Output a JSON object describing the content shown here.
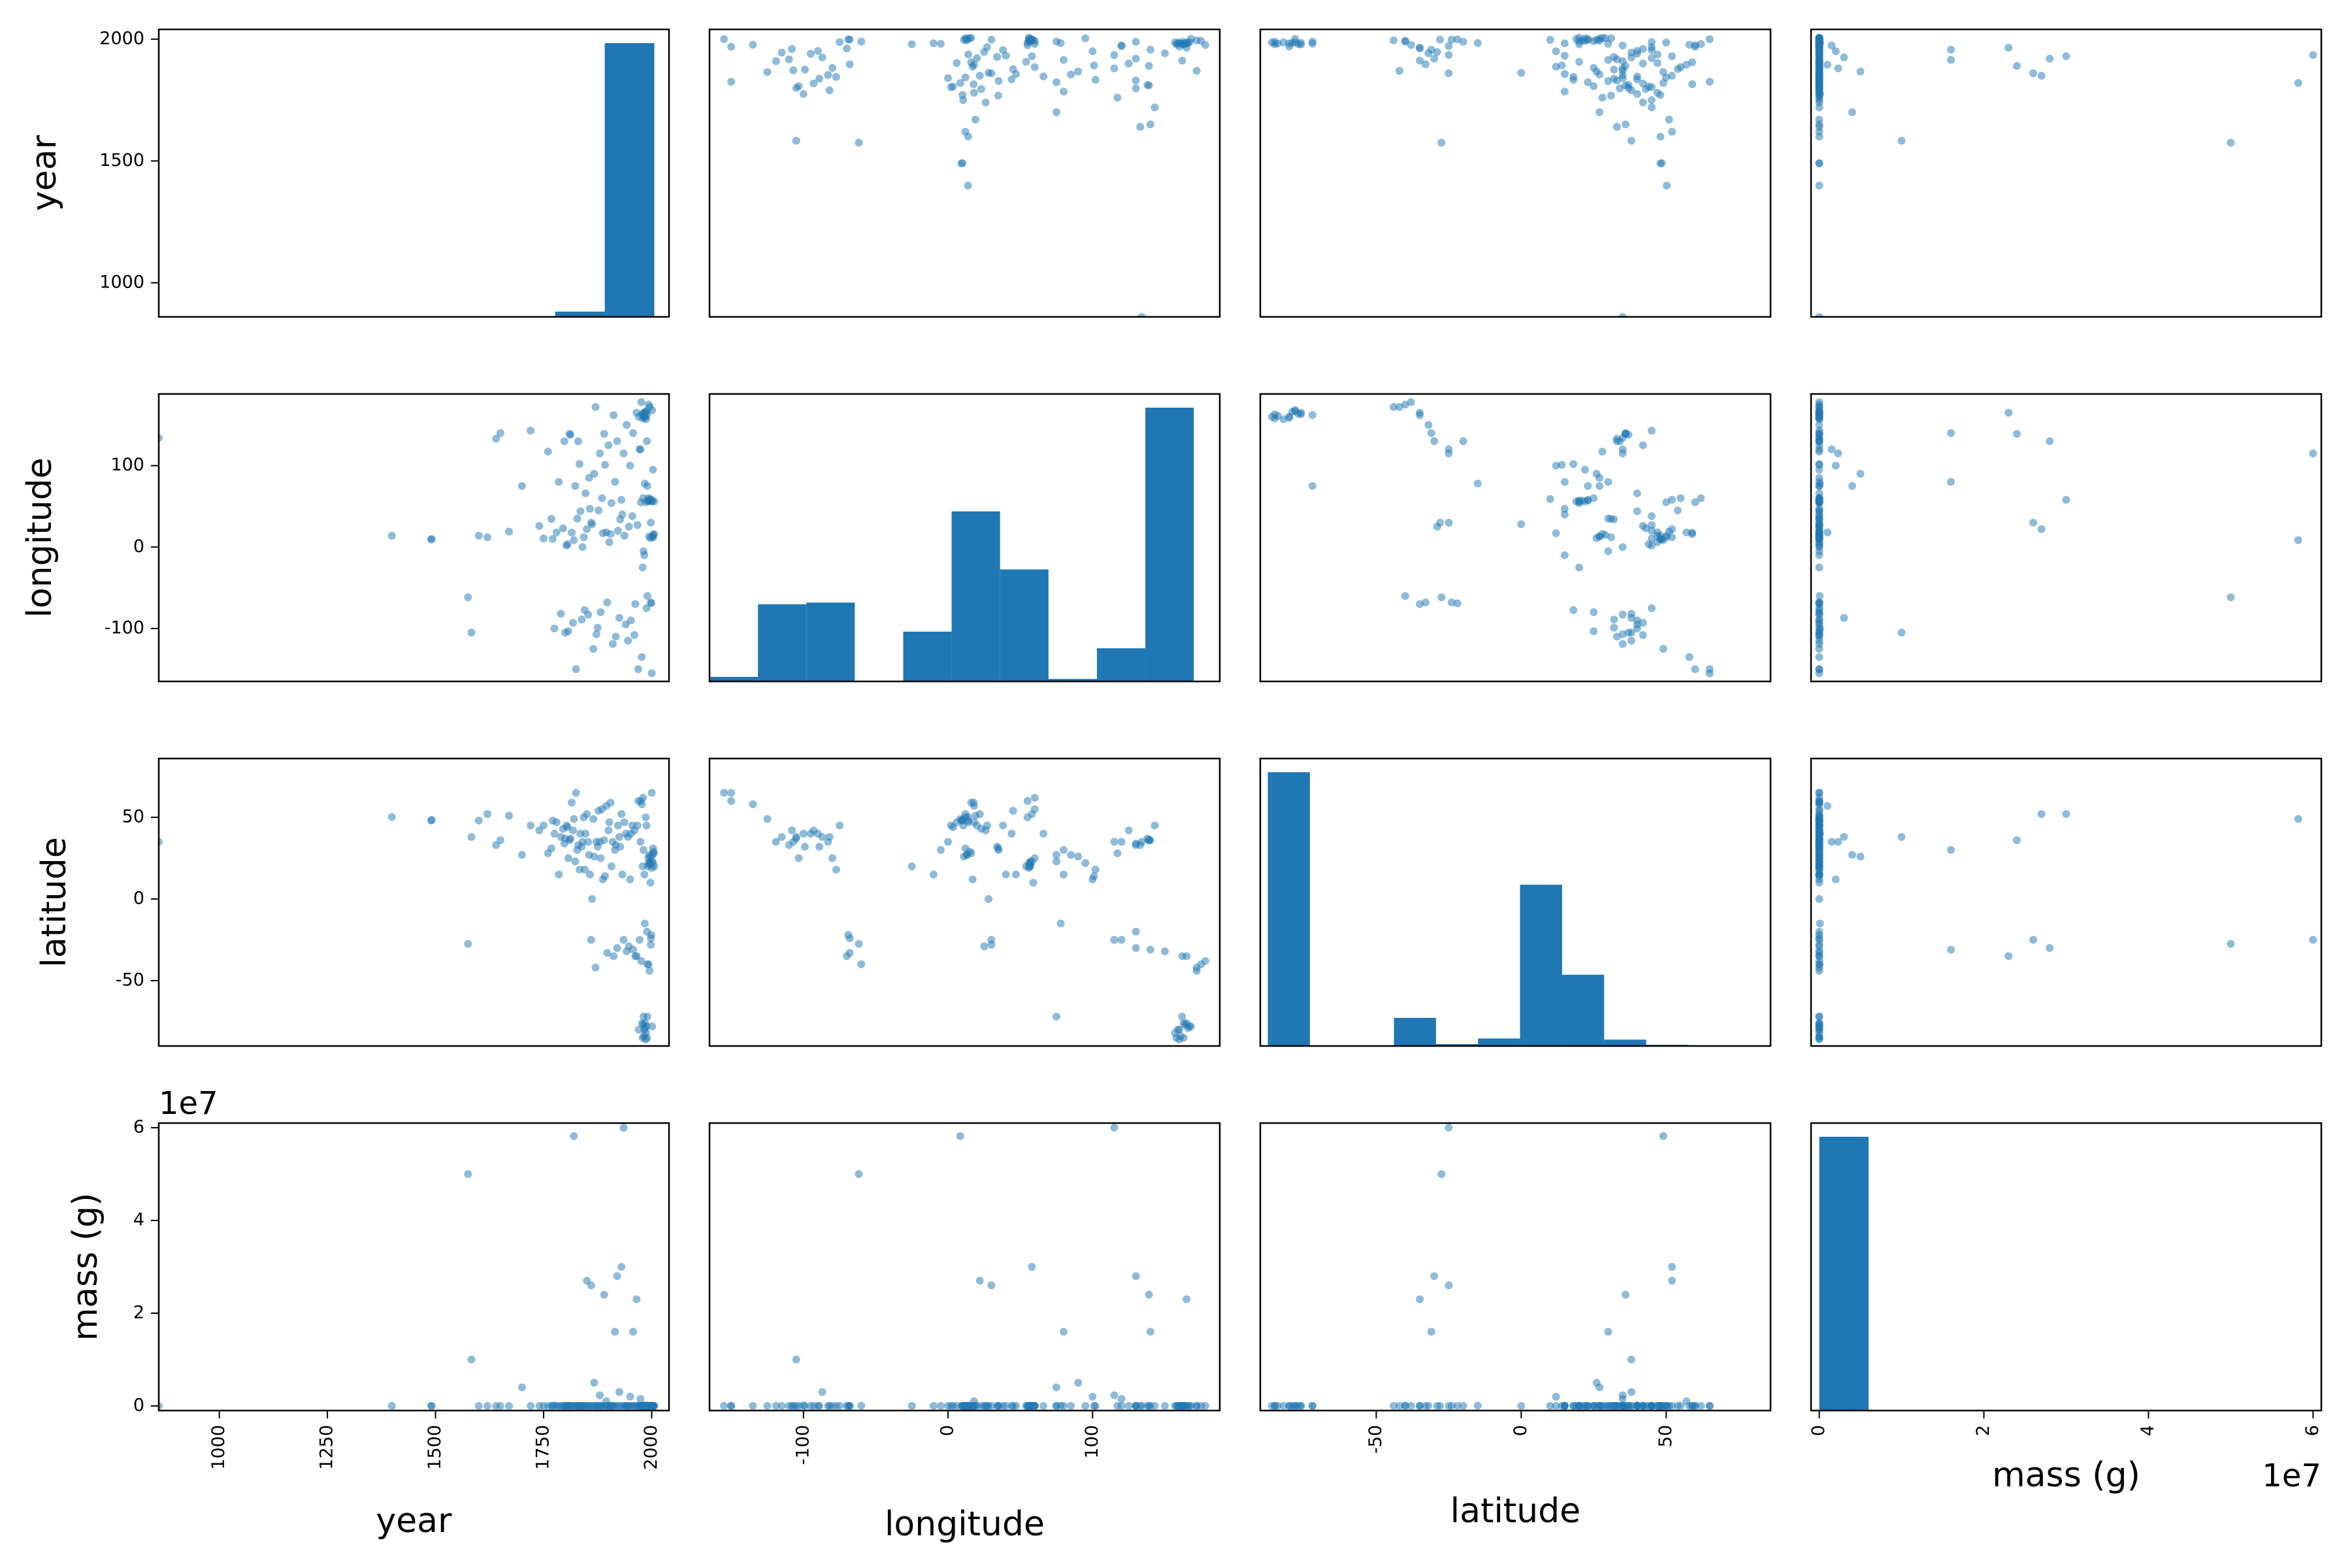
{
  "figure": {
    "type": "scatter_matrix",
    "variables": [
      "year",
      "longitude",
      "latitude",
      "mass (g)"
    ]
  },
  "colors": {
    "marker": "#1f77b4",
    "axis": "#000000",
    "background": "#ffffff"
  },
  "chart_data": {
    "type": "scatter",
    "layout": "scatter matrix (pairs plot); diagonal panels are histograms with 10 bins",
    "variables": [
      {
        "name": "year",
        "label": "year",
        "range": [
          860,
          2040
        ],
        "ticks": [
          1000,
          1250,
          1500,
          1750,
          2000
        ],
        "row_ticks": [
          1000,
          1500,
          2000
        ]
      },
      {
        "name": "longitude",
        "label": "longitude",
        "range": [
          -165,
          188
        ],
        "ticks": [
          -100,
          0,
          100
        ],
        "row_ticks": [
          -100,
          0,
          100
        ]
      },
      {
        "name": "latitude",
        "label": "latitude",
        "range": [
          -90,
          86
        ],
        "ticks": [
          -50,
          0,
          50
        ],
        "row_ticks": [
          -50,
          0,
          50
        ]
      },
      {
        "name": "mass (g)",
        "label": "mass (g)",
        "range": [
          -1000000,
          61000000
        ],
        "ticks": [
          0,
          20000000,
          40000000,
          60000000
        ],
        "tick_labels": [
          "0",
          "2",
          "4",
          "6"
        ],
        "row_ticks": [
          0,
          20000000,
          40000000,
          60000000
        ],
        "row_tick_labels": [
          "0",
          "2",
          "4",
          "6"
        ],
        "offset_label": "1e7"
      }
    ],
    "histograms": {
      "year": {
        "bin_edges": [
          860,
          974.6,
          1089.2,
          1203.8,
          1318.4,
          1433,
          1547.6,
          1662.2,
          1776.8,
          1891.4,
          2006
        ],
        "counts": [
          1,
          0,
          0,
          0,
          0,
          1,
          3,
          10,
          150,
          7770
        ]
      },
      "longitude": {
        "bin_edges": [
          -165,
          -131.5,
          -98,
          -64.5,
          -31,
          2.5,
          36,
          69.5,
          103,
          136.5,
          170
        ],
        "counts": [
          55,
          930,
          950,
          5,
          600,
          2050,
          1350,
          30,
          400,
          3300
        ]
      },
      "latitude": {
        "bin_edges": [
          -87.4,
          -72.9,
          -58.4,
          -43.9,
          -29.4,
          -14.9,
          -0.4,
          14.1,
          28.6,
          43.1,
          57.6
        ],
        "counts": [
          7300,
          0,
          5,
          750,
          50,
          200,
          4300,
          1900,
          170,
          30
        ]
      },
      "mass (g)": {
        "bin_edges": [
          0,
          6000000,
          12000000,
          18000000,
          24000000,
          30000000,
          36000000,
          42000000,
          48000000,
          54000000,
          60000000
        ],
        "counts": [
          7300,
          2,
          1,
          3,
          2,
          3,
          0,
          0,
          1,
          2
        ]
      }
    },
    "points": {
      "year": [
        860,
        1399,
        1490,
        1491,
        1575,
        1583,
        1600,
        1620,
        1640,
        1650,
        1670,
        1700,
        1720,
        1740,
        1750,
        1760,
        1768,
        1771,
        1775,
        1780,
        1785,
        1790,
        1795,
        1798,
        1800,
        1803,
        1805,
        1807,
        1810,
        1812,
        1815,
        1818,
        1820,
        1823,
        1825,
        1828,
        1830,
        1833,
        1835,
        1838,
        1840,
        1843,
        1845,
        1847,
        1850,
        1853,
        1855,
        1857,
        1860,
        1862,
        1865,
        1867,
        1870,
        1872,
        1875,
        1877,
        1880,
        1882,
        1885,
        1887,
        1890,
        1892,
        1895,
        1897,
        1900,
        1902,
        1905,
        1907,
        1910,
        1912,
        1915,
        1917,
        1920,
        1922,
        1925,
        1927,
        1930,
        1932,
        1935,
        1937,
        1940,
        1942,
        1945,
        1947,
        1950,
        1952,
        1955,
        1957,
        1960,
        1962,
        1965,
        1967,
        1970,
        1972,
        1975,
        1977,
        1978,
        1979,
        1980,
        1981,
        1982,
        1983,
        1984,
        1985,
        1986,
        1987,
        1988,
        1989,
        1990,
        1991,
        1992,
        1993,
        1994,
        1995,
        1996,
        1997,
        1998,
        1999,
        2000,
        2001,
        2002,
        2003,
        2004,
        2005,
        2006,
        1988,
        1990,
        1979,
        1984,
        1997,
        2000,
        1976,
        1969,
        1993,
        1981,
        1986,
        1998,
        2001,
        1974,
        1995,
        2003,
        1980,
        1983,
        1989,
        1991
      ],
      "longitude": [
        134.0,
        13.8,
        9.3,
        10.0,
        -61.7,
        -105.0,
        14.0,
        12.0,
        133.0,
        140.0,
        19.0,
        75.0,
        143.0,
        26.0,
        10.5,
        117.2,
        34.7,
        10.0,
        -100.0,
        18.0,
        80.0,
        -82.0,
        23.0,
        130.0,
        -105.0,
        2.0,
        3.5,
        -103.3,
        139.0,
        138.0,
        17.7,
        -93.0,
        8.5,
        75.0,
        -150.0,
        35.0,
        129.9,
        102.0,
        44.0,
        -89.0,
        0.0,
        12.0,
        -77.4,
        66.0,
        22.0,
        -83.0,
        85.0,
        47.0,
        30.0,
        28.0,
        -125.0,
        90.0,
        172.0,
        -107.0,
        -99.0,
        45.0,
        115.0,
        -80.0,
        60.0,
        17.0,
        139.0,
        101.0,
        18.0,
        -68.0,
        125.0,
        6.0,
        16.0,
        54.0,
        -119.0,
        162.0,
        80.0,
        -110.0,
        130.0,
        20.0,
        -87.0,
        34.0,
        58.0,
        40.0,
        115.0,
        14.0,
        -95.0,
        150.0,
        -115.0,
        25.0,
        100.0,
        -90.0,
        38.0,
        140.0,
        -108.0,
        -70.0,
        165.0,
        27.0,
        160.0,
        120.0,
        55.0,
        -135.0,
        163.0,
        158.0,
        164.0,
        162.0,
        161.0,
        159.0,
        166.0,
        165.0,
        160.0,
        157.0,
        167.0,
        163.0,
        75.0,
        57.0,
        60.0,
        56.0,
        13.0,
        57.0,
        58.0,
        11.0,
        -68.0,
        -69.0,
        56.0,
        57.0,
        13.0,
        12.0,
        15.0,
        16.0,
        56.0,
        -75.0,
        -60.0,
        -25.0,
        78.0,
        59.0,
        -155.0,
        178.0,
        -150.0,
        175.0,
        -5.0,
        55.0,
        30.0,
        168.0,
        120.0,
        172.0,
        95.0,
        60.0,
        -10.0,
        130.0
      ],
      "latitude": [
        35.0,
        50.2,
        48.0,
        48.5,
        -27.5,
        38.0,
        48.0,
        52.0,
        33.0,
        36.0,
        51.0,
        27.0,
        45.0,
        42.0,
        45.0,
        28.0,
        31.0,
        48.0,
        40.0,
        47.0,
        15.0,
        38.0,
        43.0,
        34.0,
        37.0,
        45.0,
        44.0,
        25.0,
        36.0,
        37.0,
        59.0,
        42.0,
        49.0,
        23.0,
        65.0,
        30.0,
        33.0,
        18.0,
        40.0,
        32.0,
        35.0,
        50.0,
        18.0,
        40.0,
        52.0,
        35.0,
        27.0,
        15.0,
        -25.0,
        0.0,
        49.0,
        26.0,
        -42.0,
        35.0,
        32.0,
        54.0,
        35.0,
        25.0,
        55.0,
        12.0,
        36.0,
        14.0,
        57.0,
        -33.0,
        42.0,
        47.0,
        59.0,
        20.0,
        35.0,
        -35.0,
        30.0,
        33.0,
        -30.0,
        45.0,
        38.0,
        32.0,
        52.0,
        15.0,
        -25.0,
        47.0,
        40.0,
        -32.0,
        38.0,
        -29.0,
        12.0,
        40.0,
        45.0,
        -31.0,
        42.0,
        -35.0,
        -35.0,
        45.0,
        -80.0,
        -25.0,
        60.0,
        58.0,
        -76.0,
        -85.0,
        -77.0,
        -72.0,
        -84.0,
        -80.0,
        -79.0,
        -76.0,
        -86.0,
        -82.0,
        -78.0,
        -85.0,
        -72.0,
        20.0,
        25.0,
        22.0,
        27.0,
        21.0,
        23.0,
        26.0,
        -24.0,
        -22.0,
        19.0,
        23.0,
        27.0,
        31.0,
        29.0,
        28.0,
        20.0,
        45.0,
        -40.0,
        20.0,
        -15.0,
        10.0,
        65.0,
        -38.0,
        60.0,
        -40.0,
        30.0,
        50.0,
        -28.0,
        -78.0,
        35.0,
        -44.0,
        22.0,
        62.0,
        15.0,
        -20.0
      ],
      "mass (g)": [
        1000,
        5000,
        3000,
        2000,
        50000000,
        10000000,
        4000,
        1500,
        8000,
        2500,
        600,
        4000000,
        9000,
        2000,
        1200,
        3000,
        800,
        500,
        100000,
        2500,
        300,
        700,
        1500,
        2000,
        100,
        900,
        1100,
        3000,
        600,
        450,
        800,
        1200,
        58200000,
        700,
        3000,
        2000,
        500,
        800,
        300,
        1500,
        200,
        400,
        100,
        600,
        27000000,
        300,
        700,
        900,
        26000000,
        100,
        200,
        5000000,
        400,
        600,
        800,
        1000,
        2300000,
        300,
        15000,
        500,
        24000000,
        700,
        1000000,
        400,
        200,
        600,
        300,
        100,
        500,
        400,
        16000000,
        800,
        28000000,
        200,
        3000000,
        500,
        30000000,
        1500,
        60000000,
        300,
        700,
        400,
        100,
        250,
        2000000,
        800,
        300,
        16000000,
        100,
        200,
        23000000,
        500,
        300,
        1000,
        600,
        100,
        50,
        30,
        20,
        40,
        60,
        15,
        25,
        35,
        45,
        55,
        70,
        80,
        100,
        500,
        800,
        900,
        1000,
        1200,
        300,
        700,
        200,
        400,
        600,
        100,
        500,
        300,
        150,
        200,
        250,
        20000,
        50000,
        3000,
        80000,
        9000,
        600,
        4000,
        800,
        2000,
        3000,
        1000,
        5000,
        50,
        1500000,
        600,
        100,
        9000,
        1200,
        500
      ]
    }
  }
}
